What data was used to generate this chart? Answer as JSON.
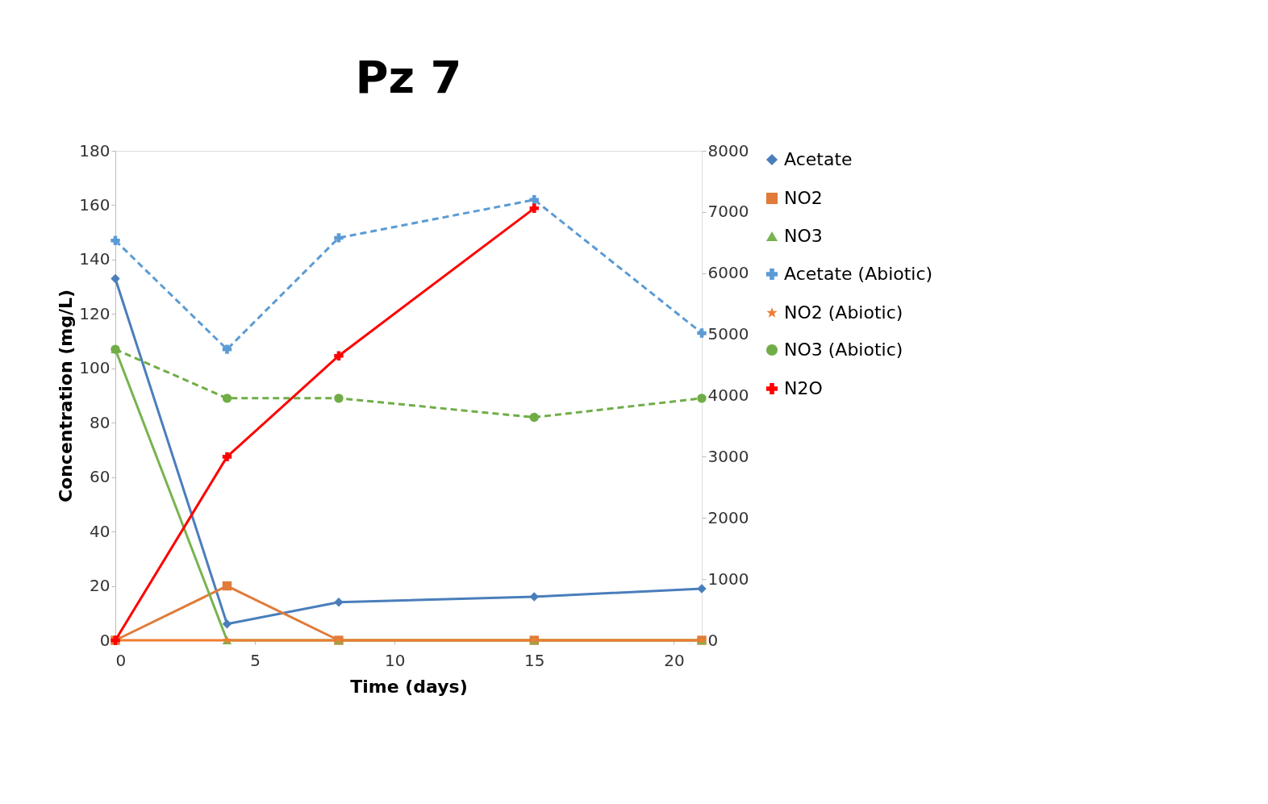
{
  "chart_data": {
    "type": "line",
    "title": "Pz 7",
    "xlabel": "Time (days)",
    "ylabel": "Concentration (mg/L)",
    "x": [
      0,
      4,
      8,
      15,
      21
    ],
    "xlim": [
      0,
      21
    ],
    "xticks": [
      0,
      5,
      10,
      15,
      20
    ],
    "ylim": [
      0,
      180
    ],
    "yticks": [
      0,
      20,
      40,
      60,
      80,
      100,
      120,
      140,
      160,
      180
    ],
    "y2lim": [
      0,
      8000
    ],
    "y2ticks": [
      0,
      1000,
      2000,
      3000,
      4000,
      5000,
      6000,
      7000,
      8000
    ],
    "grid": false,
    "legend": "right",
    "series": [
      {
        "name": "Acetate",
        "color": "#4a7ebb",
        "marker": "diamond",
        "line_style": "solid",
        "values": [
          133,
          6,
          14,
          16,
          19
        ]
      },
      {
        "name": "NO2",
        "color": "#e07b39",
        "marker": "square",
        "line_style": "solid",
        "values": [
          0,
          20,
          0,
          0,
          0
        ]
      },
      {
        "name": "NO3",
        "color": "#77b34f",
        "marker": "triangle",
        "line_style": "solid",
        "values": [
          107,
          0,
          0,
          0,
          0
        ]
      },
      {
        "name": "Acetate (Abiotic)",
        "color": "#5b9bd5",
        "marker": "cross",
        "line_style": "dashed",
        "values": [
          147,
          107,
          148,
          162,
          113
        ]
      },
      {
        "name": "NO2 (Abiotic)",
        "color": "#ed7d31",
        "marker": "star",
        "line_style": "solid",
        "values": [
          0,
          0,
          0,
          0,
          0
        ]
      },
      {
        "name": "NO3 (Abiotic)",
        "color": "#70ad47",
        "marker": "circle",
        "line_style": "dashed",
        "values": [
          107,
          89,
          89,
          82,
          89
        ]
      },
      {
        "name": "N2O",
        "color": "#ff0000",
        "marker": "cross",
        "line_style": "solid",
        "axis": "y2",
        "values": [
          0,
          3000,
          4650,
          7060,
          null
        ]
      }
    ]
  }
}
